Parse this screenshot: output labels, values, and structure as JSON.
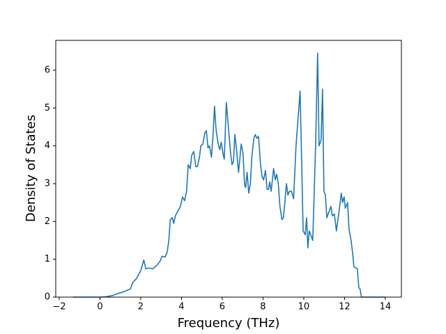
{
  "chart_data": {
    "type": "line",
    "xlabel": "Frequency (THz)",
    "ylabel": "Density of States",
    "x": [
      -1.33,
      0,
      0.3,
      0.6,
      0.9,
      1.1,
      1.3,
      1.5,
      1.6,
      1.8,
      2.0,
      2.15,
      2.25,
      2.4,
      2.6,
      2.8,
      2.95,
      3.05,
      3.2,
      3.3,
      3.38,
      3.45,
      3.55,
      3.62,
      3.7,
      3.95,
      4.05,
      4.15,
      4.25,
      4.33,
      4.43,
      4.5,
      4.6,
      4.7,
      4.78,
      4.88,
      4.95,
      5.05,
      5.15,
      5.22,
      5.3,
      5.37,
      5.47,
      5.55,
      5.62,
      5.7,
      5.82,
      5.88,
      5.95,
      6.05,
      6.1,
      6.2,
      6.3,
      6.4,
      6.48,
      6.55,
      6.62,
      6.7,
      6.8,
      6.93,
      7.02,
      7.1,
      7.15,
      7.22,
      7.3,
      7.38,
      7.45,
      7.55,
      7.62,
      7.7,
      7.78,
      7.88,
      7.95,
      8.03,
      8.12,
      8.2,
      8.27,
      8.33,
      8.4,
      8.52,
      8.6,
      8.67,
      8.75,
      8.83,
      8.93,
      9.0,
      9.07,
      9.15,
      9.22,
      9.3,
      9.4,
      9.5,
      9.62,
      9.82,
      9.97,
      10.07,
      10.14,
      10.2,
      10.27,
      10.44,
      10.58,
      10.68,
      10.75,
      10.85,
      10.92,
      10.99,
      11.06,
      11.13,
      11.33,
      11.4,
      11.5,
      11.6,
      11.74,
      11.84,
      11.9,
      11.98,
      12.04,
      12.15,
      12.22,
      12.32,
      12.39,
      12.46,
      12.63,
      12.7,
      12.76,
      12.83,
      14.0
    ],
    "series": [
      {
        "color": "#1f77b4",
        "values": [
          0,
          0,
          0.01,
          0.04,
          0.1,
          0.13,
          0.17,
          0.22,
          0.38,
          0.5,
          0.7,
          0.98,
          0.75,
          0.77,
          0.75,
          0.85,
          0.95,
          1.08,
          1.06,
          1.2,
          1.5,
          2.05,
          2.1,
          1.95,
          2.15,
          2.4,
          2.65,
          2.55,
          2.8,
          3.5,
          3.4,
          3.75,
          3.85,
          3.45,
          3.45,
          3.7,
          4.0,
          4.05,
          4.35,
          4.4,
          3.95,
          4.0,
          3.7,
          4.3,
          5.05,
          4.4,
          4.0,
          3.9,
          4.1,
          3.75,
          3.65,
          5.15,
          4.5,
          3.85,
          3.5,
          3.6,
          4.3,
          3.9,
          3.3,
          4.05,
          3.8,
          2.95,
          2.9,
          3.3,
          2.75,
          3.0,
          3.7,
          4.2,
          4.3,
          4.2,
          4.25,
          3.5,
          3.2,
          3.1,
          3.35,
          2.85,
          2.85,
          3.05,
          2.8,
          3.4,
          3.1,
          3.25,
          3.0,
          2.4,
          2.05,
          2.1,
          2.5,
          3.0,
          2.7,
          2.8,
          2.8,
          2.6,
          4.0,
          5.45,
          1.75,
          1.65,
          2.1,
          1.3,
          1.75,
          1.5,
          4.0,
          6.45,
          4.0,
          4.15,
          5.5,
          2.8,
          2.7,
          2.1,
          2.4,
          2.15,
          2.2,
          1.75,
          2.3,
          2.75,
          2.5,
          2.65,
          2.35,
          2.5,
          1.8,
          1.5,
          1.2,
          0.8,
          0.75,
          0.25,
          0.22,
          0,
          0
        ]
      }
    ],
    "xlim": [
      -2.17,
      14.79
    ],
    "ylim": [
      0,
      6.79
    ],
    "xticks": [
      {
        "value": -2,
        "label": "−2"
      },
      0,
      2,
      4,
      6,
      8,
      10,
      12,
      14
    ],
    "yticks": [
      0,
      1,
      2,
      3,
      4,
      5,
      6
    ]
  }
}
